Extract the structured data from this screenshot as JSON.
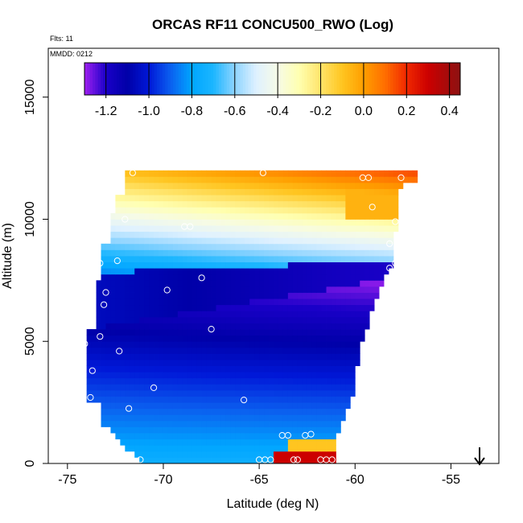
{
  "chart_data": {
    "type": "heatmap",
    "title": "ORCAS RF11 CONCU500_RWO (Log)",
    "annotations": {
      "flights": "Flts: 11",
      "date": "MMDD: 0212"
    },
    "xlabel": "Latitude (deg N)",
    "ylabel": "Altitude (m)",
    "xlim": [
      -76.0,
      -52.5
    ],
    "ylim": [
      0,
      17000
    ],
    "xticks": [
      -75,
      -70,
      -65,
      -60,
      -55
    ],
    "yticks": [
      0,
      5000,
      10000,
      15000
    ],
    "colorbar": {
      "range": [
        -1.3,
        0.45
      ],
      "ticks": [
        -1.2,
        -1.0,
        -0.8,
        -0.6,
        -0.4,
        -0.2,
        0.0,
        0.2,
        0.4
      ],
      "tick_labels": [
        "-1.2",
        "-1.0",
        "-0.8",
        "-0.6",
        "-0.4",
        "-0.2",
        "0.0",
        "0.2",
        "0.4"
      ],
      "position": "top-inside"
    },
    "grid": false,
    "bottom_right_marker": "down-arrow",
    "observation_points": [
      {
        "lat": -74.1,
        "alt": 4900
      },
      {
        "lat": -73.7,
        "alt": 3800
      },
      {
        "lat": -73.8,
        "alt": 2700
      },
      {
        "lat": -73.3,
        "alt": 5200
      },
      {
        "lat": -73.3,
        "alt": 8200
      },
      {
        "lat": -73.0,
        "alt": 7000
      },
      {
        "lat": -73.1,
        "alt": 6500
      },
      {
        "lat": -72.4,
        "alt": 8300
      },
      {
        "lat": -72.3,
        "alt": 4600
      },
      {
        "lat": -71.8,
        "alt": 2250
      },
      {
        "lat": -72.0,
        "alt": 10000
      },
      {
        "lat": -71.6,
        "alt": 11900
      },
      {
        "lat": -71.2,
        "alt": 150
      },
      {
        "lat": -70.5,
        "alt": 3100
      },
      {
        "lat": -69.8,
        "alt": 7100
      },
      {
        "lat": -68.9,
        "alt": 9700
      },
      {
        "lat": -68.6,
        "alt": 9700
      },
      {
        "lat": -68.0,
        "alt": 7600
      },
      {
        "lat": -67.5,
        "alt": 5500
      },
      {
        "lat": -65.8,
        "alt": 2600
      },
      {
        "lat": -65.0,
        "alt": 150
      },
      {
        "lat": -64.7,
        "alt": 150
      },
      {
        "lat": -64.4,
        "alt": 150
      },
      {
        "lat": -63.8,
        "alt": 1150
      },
      {
        "lat": -63.5,
        "alt": 1150
      },
      {
        "lat": -63.2,
        "alt": 150
      },
      {
        "lat": -63.0,
        "alt": 150
      },
      {
        "lat": -62.6,
        "alt": 1150
      },
      {
        "lat": -62.3,
        "alt": 1200
      },
      {
        "lat": -61.8,
        "alt": 150
      },
      {
        "lat": -61.5,
        "alt": 150
      },
      {
        "lat": -61.2,
        "alt": 150
      },
      {
        "lat": -60.8,
        "alt": 800
      },
      {
        "lat": -64.8,
        "alt": 11900
      },
      {
        "lat": -59.6,
        "alt": 11700
      },
      {
        "lat": -59.3,
        "alt": 11700
      },
      {
        "lat": -59.1,
        "alt": 10500
      },
      {
        "lat": -58.2,
        "alt": 9000
      },
      {
        "lat": -58.2,
        "alt": 8000
      },
      {
        "lat": -57.9,
        "alt": 8200
      },
      {
        "lat": -57.9,
        "alt": 9900
      },
      {
        "lat": -57.6,
        "alt": 11700
      }
    ]
  }
}
